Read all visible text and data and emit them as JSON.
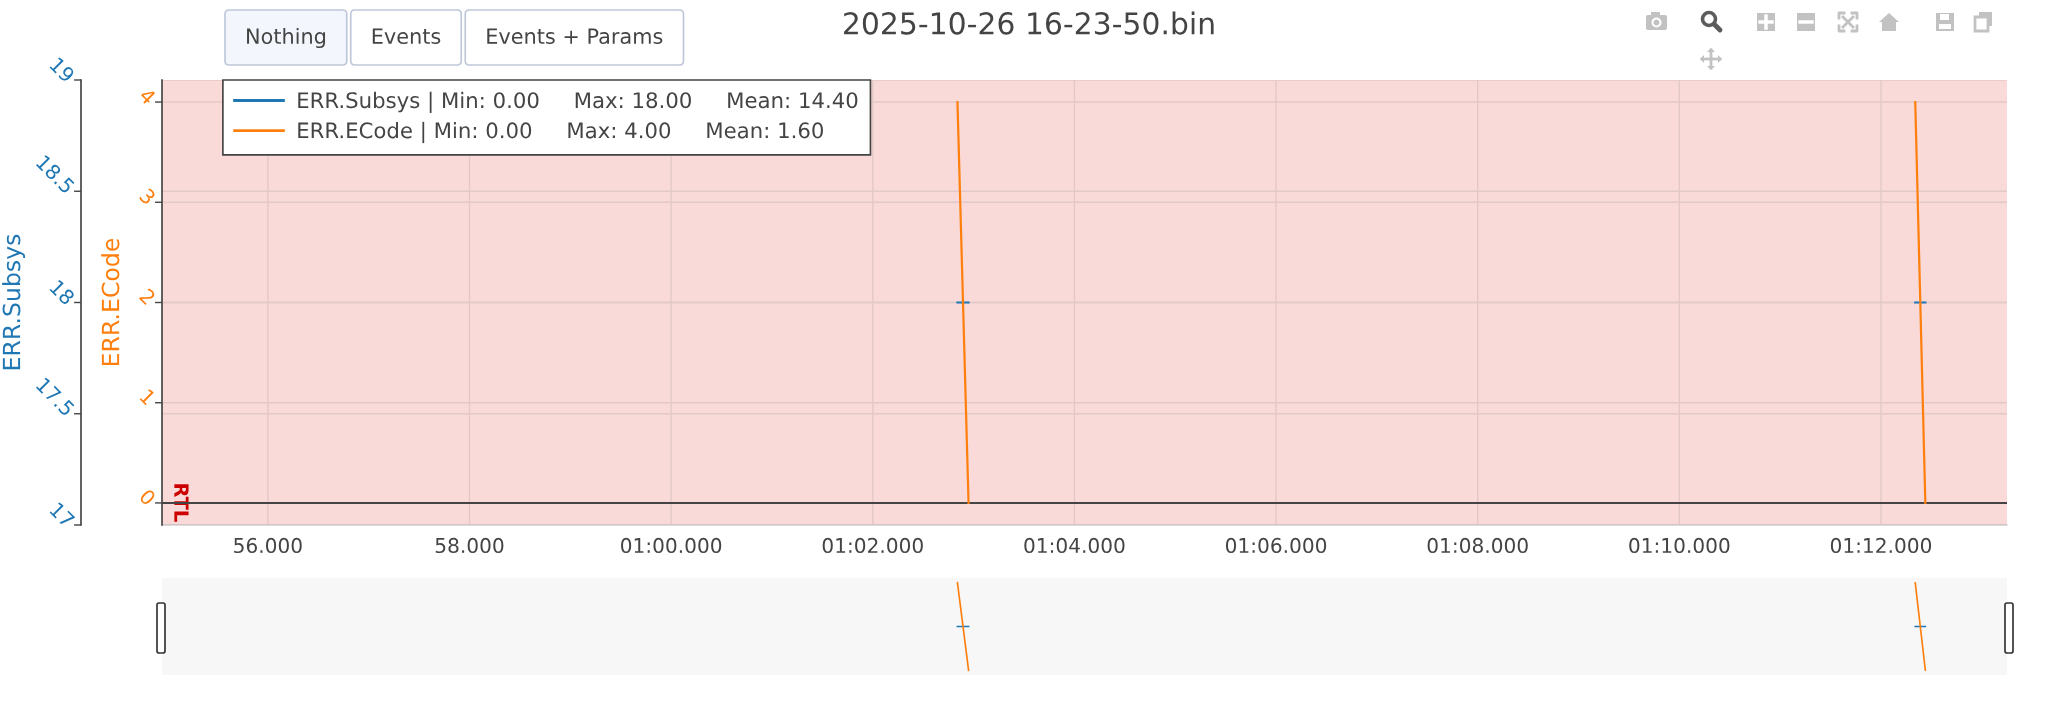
{
  "chart_data": {
    "type": "line",
    "title": "2025-10-26 16-23-50.bin",
    "ylabel": "ERR.Subsys",
    "y2label": "ERR.ECode",
    "annotations": [
      "Nothing",
      "Events",
      "Events + Params"
    ],
    "series": [
      {
        "name": "ERR.Subsys | Min: 0.00     Max: 18.00     Mean: 14.40",
        "color": "#1f77b4",
        "x": [
          62.84,
          62.95,
          null,
          72.34,
          72.44
        ],
        "values": [
          18,
          18,
          null,
          18,
          18
        ]
      },
      {
        "name": "ERR.ECode | Min: 0.00     Max: 4.00     Mean: 1.60",
        "color": "#ff7f0e",
        "axis": "y2",
        "x": [
          62.84,
          62.95,
          null,
          72.34,
          72.44
        ],
        "values": [
          4,
          0,
          null,
          4,
          0
        ]
      }
    ],
    "xlim": [
      54.95,
      73.25
    ],
    "xticks": [
      {
        "value": 56,
        "label": "56.000"
      },
      {
        "value": 58,
        "label": "58.000"
      },
      {
        "value": 60,
        "label": "01:00.000"
      },
      {
        "value": 62,
        "label": "01:02.000"
      },
      {
        "value": 64,
        "label": "01:04.000"
      },
      {
        "value": 66,
        "label": "01:06.000"
      },
      {
        "value": 68,
        "label": "01:08.000"
      },
      {
        "value": 70,
        "label": "01:10.000"
      },
      {
        "value": 72,
        "label": "01:12.000"
      }
    ],
    "ylim": [
      17,
      19
    ],
    "yticks": [
      17,
      17.5,
      18,
      18.5,
      19
    ],
    "y2lim": [
      -0.22,
      4.22
    ],
    "y2ticks": [
      0,
      1,
      2,
      3,
      4
    ],
    "bands": [
      {
        "axis": "x",
        "from": 54.95,
        "to": 73.25,
        "label": "RTL",
        "color": "#fadad8"
      }
    ],
    "ref_lines": [
      {
        "axis": "y2",
        "value": 0,
        "color": "#444444"
      }
    ],
    "grid": true,
    "legend": "top left"
  }
}
